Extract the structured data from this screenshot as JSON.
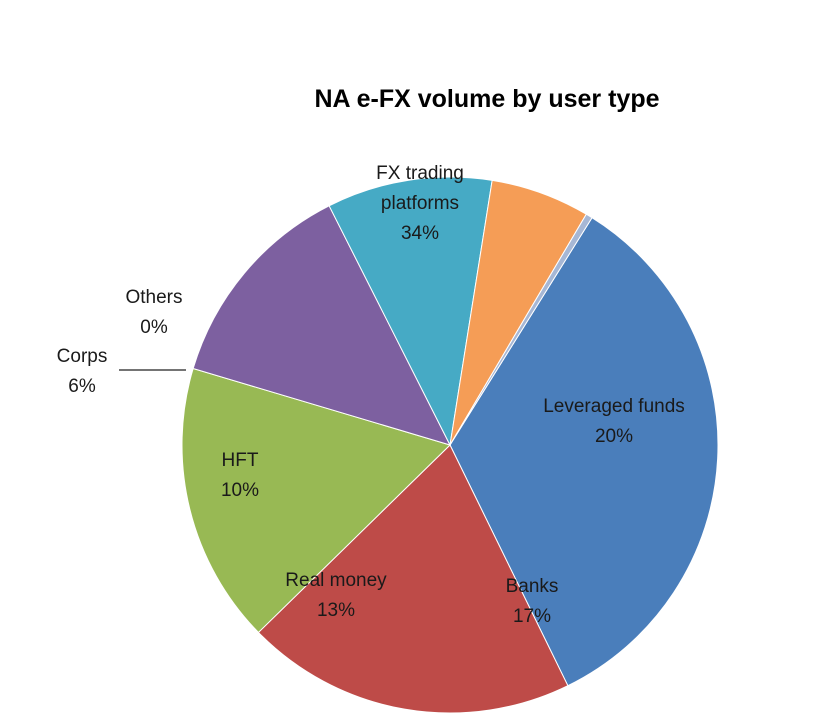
{
  "chart_data": {
    "type": "pie",
    "title": "NA e-FX volume by user type",
    "slices": [
      {
        "name": "FX trading",
        "name2": "platforms",
        "value": 34,
        "pct_label": "34%",
        "color": "#4A7EBB"
      },
      {
        "name": "Leveraged funds",
        "value": 20,
        "pct_label": "20%",
        "color": "#BE4B48"
      },
      {
        "name": "Banks",
        "value": 17,
        "pct_label": "17%",
        "color": "#98B954"
      },
      {
        "name": "Real money",
        "value": 13,
        "pct_label": "13%",
        "color": "#7D60A0"
      },
      {
        "name": "HFT",
        "value": 10,
        "pct_label": "10%",
        "color": "#46AAC5"
      },
      {
        "name": "Corps",
        "value": 6,
        "pct_label": "6%",
        "color": "#F59D56"
      },
      {
        "name": "Others",
        "value": 0.4,
        "pct_label": "0%",
        "color": "#A6B7D5"
      }
    ],
    "start_angle_deg": 32,
    "direction": "clockwise",
    "legend": "none",
    "data_labels": "category name and percentage"
  }
}
